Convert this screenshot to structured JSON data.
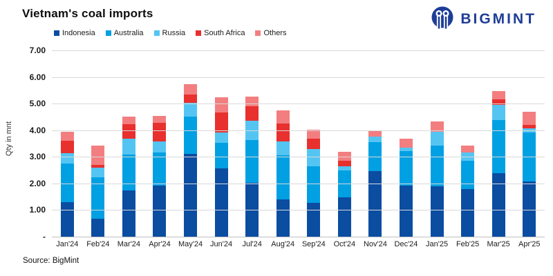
{
  "header": {
    "title": "Vietnam's coal imports",
    "logo_text": "BIGMINT"
  },
  "footer": {
    "source": "Source: BigMint"
  },
  "colors": {
    "logo": "#1e3d96",
    "grid": "#d9d9d9",
    "axis_line": "#bfbfbf",
    "indonesia": "#0b4da1",
    "australia": "#00a0e3",
    "russia": "#54c5f2",
    "south_africa": "#e8302e",
    "others": "#f37e80"
  },
  "chart_data": {
    "type": "bar",
    "stacked": true,
    "title": "Vietnam's coal imports",
    "ylabel": "Qty in mnt",
    "xlabel": "",
    "ylim": [
      0,
      7
    ],
    "yticks_values": [
      7,
      6,
      5,
      4,
      3,
      2,
      1,
      0
    ],
    "yticks_labels": [
      "7.00",
      "6.00",
      "5.00",
      "4.00",
      "3.00",
      "2.00",
      "1.00",
      "-"
    ],
    "grid": true,
    "legend_position": "top",
    "categories": [
      "Jan'24",
      "Feb'24",
      "Mar'24",
      "Apr'24",
      "May'24",
      "Jun'24",
      "Jul'24",
      "Aug'24",
      "Sep'24",
      "Oct'24",
      "Nov'24",
      "Dec'24",
      "Jan'25",
      "Feb'25",
      "Mar'25",
      "Apr'25"
    ],
    "series": [
      {
        "name": "Indonesia",
        "color": "#0b4da1",
        "values": [
          1.3,
          0.67,
          1.73,
          1.92,
          3.12,
          2.58,
          2.01,
          1.4,
          1.28,
          1.48,
          2.47,
          1.92,
          1.9,
          1.78,
          2.39,
          2.07
        ]
      },
      {
        "name": "Australia",
        "color": "#00a0e3",
        "values": [
          1.45,
          1.56,
          1.36,
          1.24,
          1.4,
          0.95,
          1.63,
          1.65,
          1.37,
          1.0,
          1.07,
          1.29,
          1.52,
          1.07,
          1.98,
          1.84
        ]
      },
      {
        "name": "Russia",
        "color": "#54c5f2",
        "values": [
          0.4,
          0.36,
          0.59,
          0.41,
          0.52,
          0.39,
          0.71,
          0.54,
          0.64,
          0.16,
          0.23,
          0.13,
          0.53,
          0.31,
          0.59,
          0.16
        ]
      },
      {
        "name": "South Africa",
        "color": "#e8302e",
        "values": [
          0.45,
          0.11,
          0.54,
          0.7,
          0.31,
          0.76,
          0.55,
          0.65,
          0.39,
          0.22,
          0.0,
          0.0,
          0.0,
          0.0,
          0.2,
          0.13
        ]
      },
      {
        "name": "Others",
        "color": "#f37e80",
        "values": [
          0.35,
          0.72,
          0.28,
          0.28,
          0.37,
          0.56,
          0.36,
          0.5,
          0.34,
          0.33,
          0.2,
          0.33,
          0.39,
          0.26,
          0.3,
          0.49
        ]
      }
    ],
    "totals": [
      3.95,
      3.42,
      4.5,
      4.55,
      5.72,
      5.24,
      5.26,
      4.74,
      4.02,
      3.19,
      3.97,
      3.67,
      4.34,
      3.42,
      5.46,
      4.69
    ]
  }
}
